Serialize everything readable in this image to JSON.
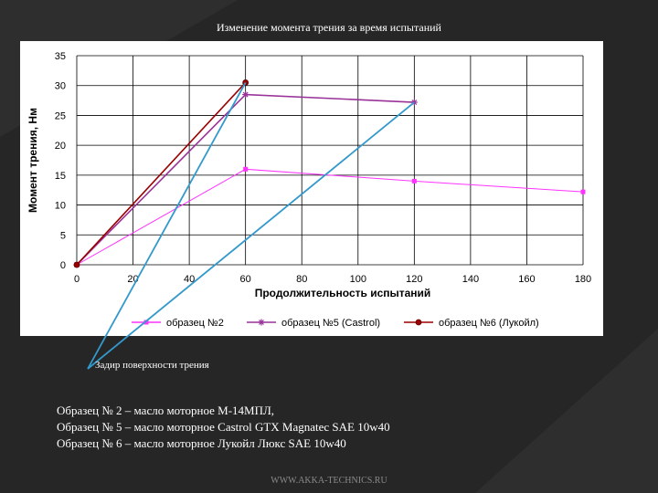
{
  "slide": {
    "title": "Изменение момента трения за время испытаний",
    "annotation": "Задир поверхности трения",
    "notes": [
      "Образец № 2 – масло моторное М-14МПЛ,",
      "Образец № 5 – масло моторное Castrol GTX Magnatec SAE 10w40",
      "Образец № 6 – масло моторное Лукойл Люкс SAE 10w40"
    ],
    "footer": "WWW.AKKA-TECHNICS.RU",
    "colors": {
      "background": "#262626",
      "panel": "#ffffff",
      "grid": "#000000",
      "annotation_line": "#3399cc"
    }
  },
  "chart_data": {
    "type": "line",
    "title": "",
    "xlabel": "Продолжительность испытаний",
    "ylabel": "Момент трения, Нм",
    "xlim": [
      0,
      180
    ],
    "ylim": [
      0,
      35
    ],
    "xticks": [
      0,
      20,
      40,
      60,
      80,
      100,
      120,
      140,
      160,
      180
    ],
    "yticks": [
      0,
      5,
      10,
      15,
      20,
      25,
      30,
      35
    ],
    "grid": true,
    "legend_position": "bottom",
    "series": [
      {
        "name": "образец №2",
        "color": "#ff33ff",
        "marker": "square",
        "x": [
          0,
          60,
          120,
          180
        ],
        "y": [
          0,
          16,
          14,
          12.2
        ]
      },
      {
        "name": "образец №5 (Castrol)",
        "color": "#993399",
        "marker": "star",
        "x": [
          0,
          60,
          120
        ],
        "y": [
          0,
          28.5,
          27.2
        ]
      },
      {
        "name": "образец №6 (Лукойл)",
        "color": "#990000",
        "marker": "circle",
        "x": [
          0,
          60
        ],
        "y": [
          0,
          30.5
        ]
      }
    ]
  }
}
